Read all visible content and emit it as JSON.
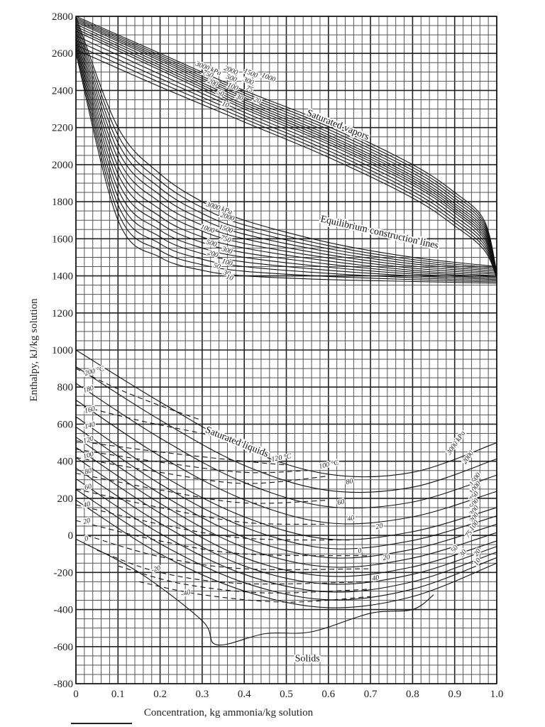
{
  "chart_data": {
    "type": "line",
    "title": "",
    "xlabel": "Concentration, kg ammonia/kg solution",
    "ylabel": "Enthalpy, kJ/kg solution",
    "xlim": [
      0,
      1.0
    ],
    "ylim": [
      -800,
      2800
    ],
    "x_ticks": [
      "0",
      "0.1",
      "0.2",
      "0.3",
      "0.4",
      "0.5",
      "0.6",
      "0.7",
      "0.8",
      "0.9",
      "1.0"
    ],
    "y_ticks": [
      "-800",
      "-600",
      "-400",
      "-200",
      "0",
      "200",
      "400",
      "600",
      "800",
      "1000",
      "1200",
      "1400",
      "1600",
      "1800",
      "2000",
      "2200",
      "2400",
      "2600",
      "2800"
    ],
    "grid": {
      "on": true,
      "x_minor": 0.02,
      "y_minor": 50
    },
    "legend": null,
    "annotations": [
      {
        "text": "Saturated vapors",
        "x": 0.62,
        "y": 2200
      },
      {
        "text": "Equilibrium construction lines",
        "x": 0.72,
        "y": 1620
      },
      {
        "text": "Saturated liquids",
        "x": 0.38,
        "y": 490
      },
      {
        "text": "Solids",
        "x": 0.55,
        "y": -680
      }
    ],
    "series_groups": [
      {
        "name": "Saturated vapors (kPa)",
        "labels": [
          "3000 kPa",
          "2000",
          "1500",
          "1000",
          "750",
          "500",
          "300",
          "200",
          "100",
          "75",
          "50",
          "30",
          "20",
          "10"
        ],
        "series": [
          {
            "name": "3000 kPa",
            "x": [
              0,
              0.2,
              0.4,
              0.6,
              0.8,
              0.9,
              0.97,
              1.0
            ],
            "y": [
              2800,
              2600,
              2400,
              2220,
              2000,
              1850,
              1700,
              1420
            ]
          },
          {
            "name": "1000 kPa",
            "x": [
              0,
              0.2,
              0.4,
              0.6,
              0.8,
              0.9,
              0.97,
              1.0
            ],
            "y": [
              2770,
              2560,
              2350,
              2160,
              1940,
              1790,
              1650,
              1410
            ]
          },
          {
            "name": "300 kPa",
            "x": [
              0,
              0.2,
              0.4,
              0.6,
              0.8,
              0.9,
              0.97,
              1.0
            ],
            "y": [
              2720,
              2510,
              2300,
              2110,
              1890,
              1740,
              1600,
              1400
            ]
          },
          {
            "name": "10 kPa",
            "x": [
              0,
              0.2,
              0.4,
              0.6,
              0.8,
              0.9,
              0.97,
              1.0
            ],
            "y": [
              2620,
              2420,
              2230,
              2040,
              1820,
              1670,
              1540,
              1390
            ]
          }
        ]
      },
      {
        "name": "Equilibrium construction lines (kPa)",
        "labels": [
          "3000 kPa",
          "2000",
          "1500",
          "1000",
          "750",
          "500",
          "300",
          "200",
          "100",
          "50",
          "30",
          "10"
        ],
        "series": [
          {
            "name": "3000 kPa",
            "x": [
              0,
              0.1,
              0.2,
              0.3,
              0.4,
              0.6,
              0.8,
              1.0
            ],
            "y": [
              2800,
              2200,
              1950,
              1800,
              1700,
              1580,
              1500,
              1450
            ]
          },
          {
            "name": "500 kPa",
            "x": [
              0,
              0.1,
              0.2,
              0.3,
              0.4,
              0.6,
              0.8,
              1.0
            ],
            "y": [
              2700,
              1950,
              1720,
              1610,
              1550,
              1480,
              1430,
              1400
            ]
          },
          {
            "name": "10 kPa",
            "x": [
              0,
              0.1,
              0.2,
              0.3,
              0.4,
              0.6,
              0.8,
              1.0
            ],
            "y": [
              2600,
              1700,
              1500,
              1430,
              1400,
              1380,
              1370,
              1360
            ]
          }
        ]
      },
      {
        "name": "Saturated liquids — isotherms (°C)",
        "labels": [
          "200 °C",
          "180",
          "160",
          "140",
          "120",
          "100",
          "80",
          "60",
          "40",
          "20",
          "0",
          "-20",
          "-40"
        ],
        "series": [
          {
            "name": "200 °C",
            "x": [
              0,
              0.1,
              0.2,
              0.3
            ],
            "y": [
              900,
              790,
              700,
              620
            ]
          },
          {
            "name": "120 °C",
            "x": [
              0,
              0.2,
              0.4,
              0.5
            ],
            "y": [
              510,
              450,
              400,
              380
            ]
          },
          {
            "name": "100 °C",
            "x": [
              0,
              0.2,
              0.4,
              0.6
            ],
            "y": [
              420,
              340,
              280,
              320
            ]
          },
          {
            "name": "60 °C",
            "x": [
              0,
              0.2,
              0.4,
              0.6
            ],
            "y": [
              250,
              150,
              70,
              60
            ]
          },
          {
            "name": "20 °C",
            "x": [
              0,
              0.2,
              0.4,
              0.7
            ],
            "y": [
              80,
              -30,
              -100,
              -110
            ]
          },
          {
            "name": "-20 °C",
            "x": [
              0.05,
              0.2,
              0.4,
              0.7
            ],
            "y": [
              -80,
              -200,
              -260,
              -250
            ]
          },
          {
            "name": "-40 °C",
            "x": [
              0.15,
              0.3,
              0.5,
              0.7
            ],
            "y": [
              -250,
              -320,
              -360,
              -330
            ]
          }
        ]
      },
      {
        "name": "Saturated liquids — isobars (kPa)",
        "labels": [
          "3000 kPa",
          "2000",
          "1500",
          "1000",
          "750",
          "500",
          "300",
          "200",
          "100",
          "75",
          "50",
          "30",
          "20",
          "10"
        ],
        "series": [
          {
            "name": "3000 kPa",
            "x": [
              0,
              0.2,
              0.4,
              0.6,
              0.8,
              1.0
            ],
            "y": [
              1000,
              720,
              470,
              330,
              340,
              500
            ]
          },
          {
            "name": "500 kPa",
            "x": [
              0,
              0.2,
              0.4,
              0.6,
              0.8,
              1.0
            ],
            "y": [
              640,
              330,
              100,
              -20,
              20,
              150
            ]
          },
          {
            "name": "100 kPa",
            "x": [
              0,
              0.2,
              0.4,
              0.6,
              0.8,
              1.0
            ],
            "y": [
              420,
              120,
              -120,
              -220,
              -170,
              -30
            ]
          },
          {
            "name": "10 kPa",
            "x": [
              0,
              0.2,
              0.4,
              0.6,
              0.8,
              1.0
            ],
            "y": [
              190,
              -100,
              -300,
              -390,
              -330,
              -150
            ]
          }
        ]
      },
      {
        "name": "Solids boundary",
        "labels": [
          "Solids"
        ],
        "series": [
          {
            "name": "Solids boundary",
            "x": [
              0,
              0.15,
              0.3,
              0.335,
              0.45,
              0.56,
              0.7,
              0.8,
              0.85
            ],
            "y": [
              -20,
              -200,
              -460,
              -590,
              -530,
              -520,
              -420,
              -400,
              -320
            ]
          }
        ]
      }
    ]
  }
}
